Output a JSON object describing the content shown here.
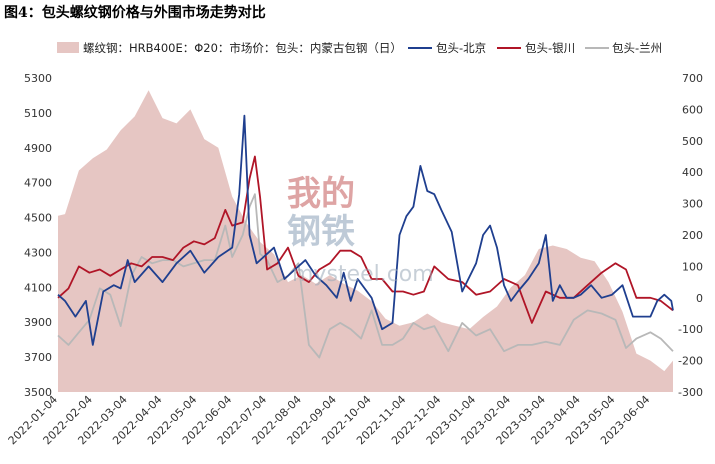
{
  "chart_data": {
    "type": "area",
    "title": "图4：包头螺纹钢价格与外围市场走势对比",
    "watermark": [
      "我的",
      "钢铁",
      "mysteel.com"
    ],
    "left_axis": {
      "ylim": [
        3500,
        5300
      ],
      "ticks": [
        "3500",
        "3700",
        "3900",
        "4100",
        "4300",
        "4500",
        "4700",
        "4900",
        "5100",
        "5300"
      ]
    },
    "right_axis": {
      "ylim": [
        -300,
        700
      ],
      "ticks": [
        "-300",
        "-200",
        "-100",
        "0",
        "100",
        "200",
        "300",
        "400",
        "500",
        "600",
        "700"
      ]
    },
    "x_ticks": [
      "2022-01-04",
      "2022-02-04",
      "2022-03-04",
      "2022-04-04",
      "2022-05-04",
      "2022-06-04",
      "2022-07-04",
      "2022-08-04",
      "2022-09-04",
      "2022-10-04",
      "2022-11-04",
      "2022-12-04",
      "2023-01-04",
      "2023-02-04",
      "2023-03-04",
      "2023-04-04",
      "2023-05-04",
      "2023-06-04"
    ],
    "legend": [
      "螺纹钢：HRB400E：Φ20：市场价：包头：内蒙古包钢（日）",
      "包头-北京",
      "包头-银川",
      "包头-兰州"
    ],
    "colors": {
      "area": "#e6c6c3",
      "beijing": "#1f3f8f",
      "yinchuan": "#b01527",
      "lanzhou": "#b8b8b8",
      "title": "#c0392b"
    },
    "series": [
      {
        "name": "螺纹钢：HRB400E：Φ20：市场价：包头：内蒙古包钢（日）",
        "axis": "left",
        "x": [
          0,
          0.2,
          0.6,
          1.0,
          1.4,
          1.8,
          2.2,
          2.6,
          3.0,
          3.4,
          3.8,
          4.2,
          4.6,
          5.0,
          5.4,
          5.8,
          6.2,
          6.6,
          7.0,
          7.4,
          7.8,
          8.2,
          8.6,
          9.0,
          9.4,
          9.8,
          10.2,
          10.6,
          11.0,
          11.4,
          11.8,
          12.2,
          12.6,
          13.0,
          13.4,
          13.8,
          14.2,
          14.6,
          15.0,
          15.4,
          15.8,
          16.2,
          16.6,
          17.0,
          17.4,
          17.65
        ],
        "values": [
          4510,
          4520,
          4770,
          4840,
          4890,
          5000,
          5080,
          5230,
          5070,
          5040,
          5120,
          4950,
          4900,
          4620,
          4470,
          4360,
          4290,
          4130,
          4170,
          4120,
          4170,
          4120,
          4080,
          4020,
          3920,
          3880,
          3900,
          3950,
          3900,
          3880,
          3860,
          3930,
          3990,
          4100,
          4170,
          4320,
          4340,
          4320,
          4270,
          4250,
          4130,
          3960,
          3720,
          3680,
          3620,
          3680
        ]
      },
      {
        "name": "包头-北京",
        "axis": "right",
        "x": [
          0,
          0.2,
          0.5,
          0.8,
          1.0,
          1.3,
          1.6,
          1.8,
          2.0,
          2.2,
          2.6,
          3.0,
          3.4,
          3.8,
          4.2,
          4.6,
          5.0,
          5.2,
          5.35,
          5.5,
          5.7,
          5.9,
          6.2,
          6.5,
          6.8,
          7.1,
          7.4,
          7.7,
          8.0,
          8.2,
          8.4,
          8.6,
          9.0,
          9.3,
          9.6,
          9.8,
          10.0,
          10.2,
          10.4,
          10.6,
          10.8,
          11.0,
          11.3,
          11.6,
          12.0,
          12.2,
          12.4,
          12.6,
          12.8,
          13.0,
          13.2,
          13.5,
          13.8,
          14.0,
          14.2,
          14.4,
          14.6,
          14.8,
          15.0,
          15.3,
          15.6,
          15.9,
          16.2,
          16.5,
          16.8,
          17.0,
          17.2,
          17.4,
          17.6,
          17.65
        ],
        "values": [
          10,
          -10,
          -60,
          -10,
          -150,
          20,
          40,
          30,
          120,
          50,
          100,
          50,
          110,
          150,
          80,
          130,
          160,
          330,
          580,
          200,
          110,
          130,
          160,
          60,
          90,
          120,
          70,
          40,
          0,
          80,
          -10,
          60,
          0,
          -100,
          -80,
          200,
          260,
          290,
          420,
          340,
          330,
          280,
          210,
          20,
          110,
          200,
          230,
          160,
          40,
          -10,
          20,
          60,
          110,
          200,
          -10,
          40,
          0,
          0,
          10,
          40,
          0,
          10,
          40,
          -60,
          -60,
          -60,
          -10,
          10,
          -10,
          -40
        ]
      },
      {
        "name": "包头-银川",
        "axis": "right",
        "x": [
          0,
          0.3,
          0.6,
          0.9,
          1.2,
          1.5,
          1.8,
          2.1,
          2.4,
          2.7,
          3.0,
          3.3,
          3.6,
          3.9,
          4.2,
          4.5,
          4.8,
          5.0,
          5.3,
          5.5,
          5.65,
          5.8,
          6.0,
          6.3,
          6.6,
          6.9,
          7.2,
          7.5,
          7.8,
          8.1,
          8.4,
          8.7,
          9.0,
          9.3,
          9.6,
          9.9,
          10.2,
          10.5,
          10.8,
          11.2,
          11.6,
          12.0,
          12.4,
          12.8,
          13.2,
          13.6,
          14.0,
          14.4,
          14.8,
          15.2,
          15.6,
          16.0,
          16.3,
          16.6,
          17.0,
          17.3,
          17.65
        ],
        "values": [
          0,
          30,
          100,
          80,
          90,
          70,
          90,
          110,
          100,
          130,
          130,
          120,
          160,
          180,
          170,
          190,
          280,
          230,
          240,
          380,
          450,
          320,
          90,
          110,
          160,
          70,
          50,
          90,
          110,
          150,
          150,
          130,
          60,
          60,
          20,
          20,
          10,
          20,
          100,
          60,
          50,
          10,
          20,
          60,
          40,
          -80,
          20,
          0,
          0,
          40,
          80,
          110,
          90,
          0,
          0,
          -10,
          -40
        ]
      },
      {
        "name": "包头-兰州",
        "axis": "right",
        "x": [
          0,
          0.3,
          0.6,
          0.9,
          1.2,
          1.5,
          1.8,
          2.1,
          2.4,
          2.7,
          3.0,
          3.3,
          3.6,
          3.9,
          4.2,
          4.5,
          4.8,
          5.0,
          5.3,
          5.5,
          5.65,
          5.8,
          6.0,
          6.3,
          6.6,
          6.9,
          7.2,
          7.5,
          7.8,
          8.1,
          8.4,
          8.7,
          9.0,
          9.3,
          9.6,
          9.9,
          10.2,
          10.5,
          10.8,
          11.2,
          11.6,
          12.0,
          12.4,
          12.8,
          13.2,
          13.6,
          14.0,
          14.4,
          14.8,
          15.2,
          15.6,
          16.0,
          16.3,
          16.6,
          17.0,
          17.3,
          17.65
        ],
        "values": [
          -120,
          -150,
          -110,
          -70,
          30,
          10,
          -90,
          70,
          130,
          110,
          120,
          120,
          100,
          110,
          120,
          120,
          230,
          130,
          200,
          290,
          330,
          140,
          120,
          50,
          70,
          110,
          -150,
          -190,
          -100,
          -80,
          -100,
          -130,
          -40,
          -150,
          -150,
          -130,
          -80,
          -100,
          -90,
          -170,
          -80,
          -120,
          -100,
          -170,
          -150,
          -150,
          -140,
          -150,
          -70,
          -40,
          -50,
          -70,
          -160,
          -130,
          -110,
          -130,
          -170
        ]
      }
    ]
  }
}
